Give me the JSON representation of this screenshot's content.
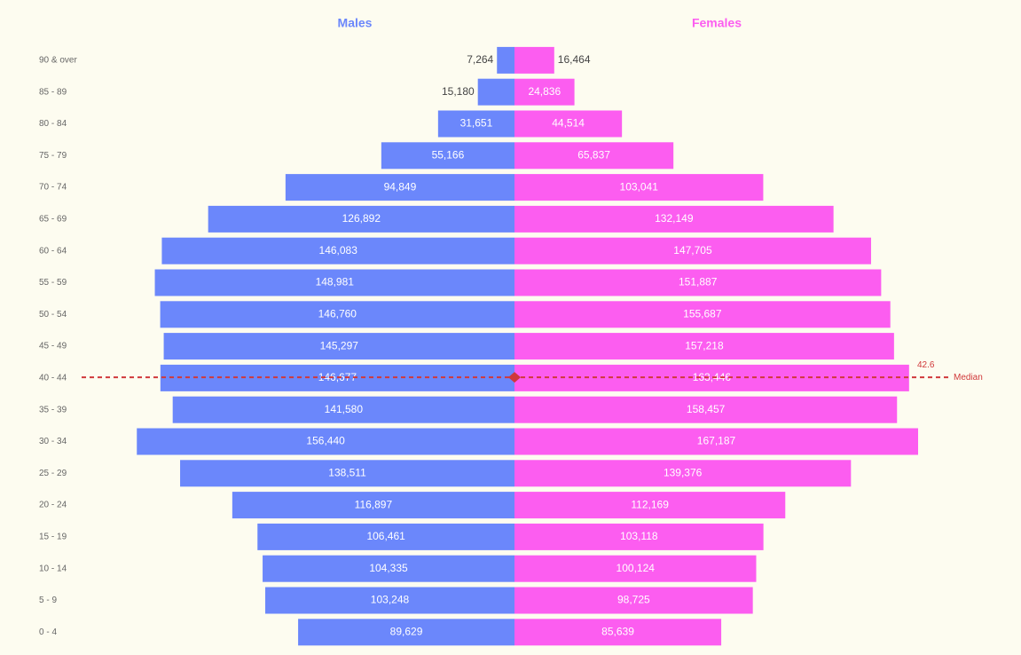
{
  "chart_data": {
    "type": "pyramid",
    "categories": [
      "90 & over",
      "85 - 89",
      "80 - 84",
      "75 - 79",
      "70 - 74",
      "65 - 69",
      "60 - 64",
      "55 - 59",
      "50 - 54",
      "45 - 49",
      "40 - 44",
      "35 - 39",
      "30 - 34",
      "25 - 29",
      "20 - 24",
      "15 - 19",
      "10 - 14",
      "5 - 9",
      "0 - 4"
    ],
    "series": [
      {
        "name": "Males",
        "color": "#6b87fb",
        "values": [
          7264,
          15180,
          31651,
          55166,
          94849,
          126892,
          146083,
          148981,
          146760,
          145297,
          146677,
          141580,
          156440,
          138511,
          116897,
          106461,
          104335,
          103248,
          89629
        ],
        "value_labels": [
          "7,264",
          "15,180",
          "31,651",
          "55,166",
          "94,849",
          "126,892",
          "146,083",
          "148,981",
          "146,760",
          "145,297",
          "146,677",
          "141,580",
          "156,440",
          "138,511",
          "116,897",
          "106,461",
          "104,335",
          "103,248",
          "89,629"
        ]
      },
      {
        "name": "Females",
        "color": "#fc5df0",
        "values": [
          16464,
          24836,
          44514,
          65837,
          103041,
          132149,
          147705,
          151887,
          155687,
          157218,
          163446,
          158457,
          167187,
          139376,
          112169,
          103118,
          100124,
          98725,
          85639
        ],
        "value_labels": [
          "16,464",
          "24,836",
          "44,514",
          "65,837",
          "103,041",
          "132,149",
          "147,705",
          "151,887",
          "155,687",
          "157,218",
          "163,446",
          "158,457",
          "167,187",
          "139,376",
          "112,169",
          "103,118",
          "100,124",
          "98,725",
          "85,639"
        ]
      }
    ],
    "median": {
      "value": 42.6,
      "label": "Median",
      "color": "#d0383a"
    }
  }
}
